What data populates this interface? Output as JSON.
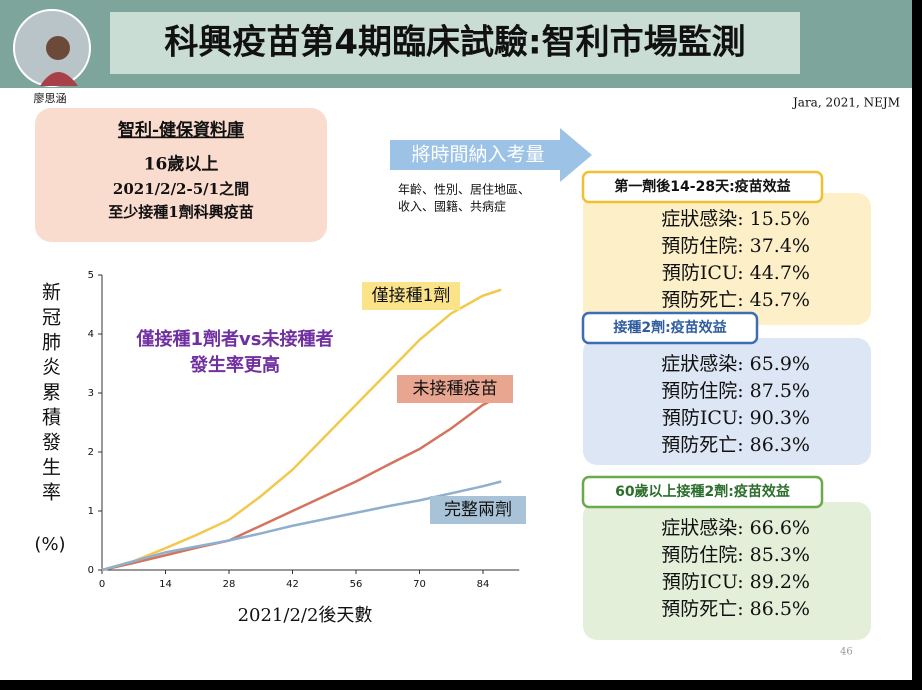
{
  "header": {
    "title": "科興疫苗第4期臨床試驗:智利市場監測",
    "presenter": "廖思涵",
    "citation": "Jara, 2021, NEJM"
  },
  "study_box": [
    "智利-健保資料庫",
    "16歲以上",
    "2021/2/2-5/1之間",
    "至少接種1劑科興疫苗"
  ],
  "arrow": {
    "label": "將時間納入考量",
    "notes": [
      "年齡、性別、居住地區、",
      "收入、國籍、共病症"
    ]
  },
  "panels": [
    {
      "title": "第一劑後14-28天:疫苗效益",
      "rows": [
        "症狀感染: 15.5%",
        "預防住院: 37.4%",
        "預防ICU: 44.7%",
        "預防死亡: 45.7%"
      ]
    },
    {
      "title": "接種2劑:疫苗效益",
      "rows": [
        "症狀感染: 65.9%",
        "預防住院: 87.5%",
        "預防ICU: 90.3%",
        "預防死亡: 86.3%"
      ]
    },
    {
      "title": "60歲以上接種2劑:疫苗效益",
      "rows": [
        "症狀感染: 66.6%",
        "預防住院: 85.3%",
        "預防ICU: 89.2%",
        "預防死亡: 86.5%"
      ]
    }
  ],
  "page_number": "46",
  "chart_data": {
    "type": "line",
    "annotation": [
      "僅接種1劑者vs未接種者",
      "發生率更高"
    ],
    "y_label": [
      "新冠肺炎累積發生率",
      "(%)"
    ],
    "x_label": "2021/2/2後天數",
    "x": [
      0,
      7,
      14,
      21,
      28,
      35,
      42,
      49,
      56,
      63,
      70,
      77,
      84,
      88
    ],
    "series": [
      {
        "name": "僅接種1劑",
        "color": "#f2c94c",
        "values": [
          0,
          0.15,
          0.37,
          0.6,
          0.85,
          1.25,
          1.7,
          2.25,
          2.8,
          3.35,
          3.9,
          4.35,
          4.65,
          4.75
        ]
      },
      {
        "name": "未接種疫苗",
        "color": "#d4735e",
        "values": [
          0,
          0.12,
          0.25,
          0.38,
          0.5,
          0.75,
          1.0,
          1.25,
          1.5,
          1.78,
          2.05,
          2.4,
          2.8,
          2.95
        ]
      },
      {
        "name": "完整兩劑",
        "color": "#8fb0cc",
        "values": [
          0,
          0.15,
          0.3,
          0.4,
          0.5,
          0.62,
          0.75,
          0.86,
          0.97,
          1.08,
          1.18,
          1.3,
          1.42,
          1.5
        ]
      }
    ],
    "xlim": [
      0,
      92
    ],
    "ylim": [
      0,
      5
    ],
    "xticks": [
      0,
      14,
      28,
      42,
      56,
      70,
      84
    ],
    "yticks": [
      0,
      1,
      2,
      3,
      4,
      5
    ]
  }
}
